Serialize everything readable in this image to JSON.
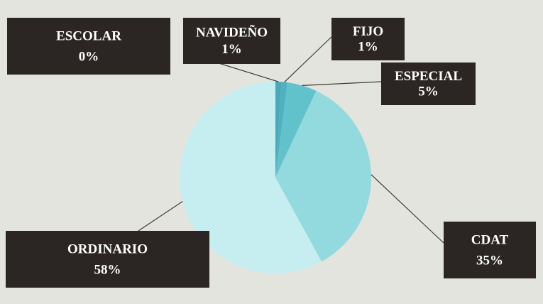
{
  "chart_data": {
    "type": "pie",
    "categories": [
      "ESCOLAR",
      "NAVIDEÑO",
      "FIJO",
      "ESPECIAL",
      "CDAT",
      "ORDINARIO"
    ],
    "values": [
      0,
      1,
      1,
      5,
      35,
      58
    ],
    "value_labels": [
      "0%",
      "1%",
      "1%",
      "5%",
      "35%",
      "58%"
    ],
    "colors": [
      "#3e9fae",
      "#49a9b8",
      "#4fb0bf",
      "#62c2cc",
      "#93dade",
      "#c6eef0"
    ]
  }
}
